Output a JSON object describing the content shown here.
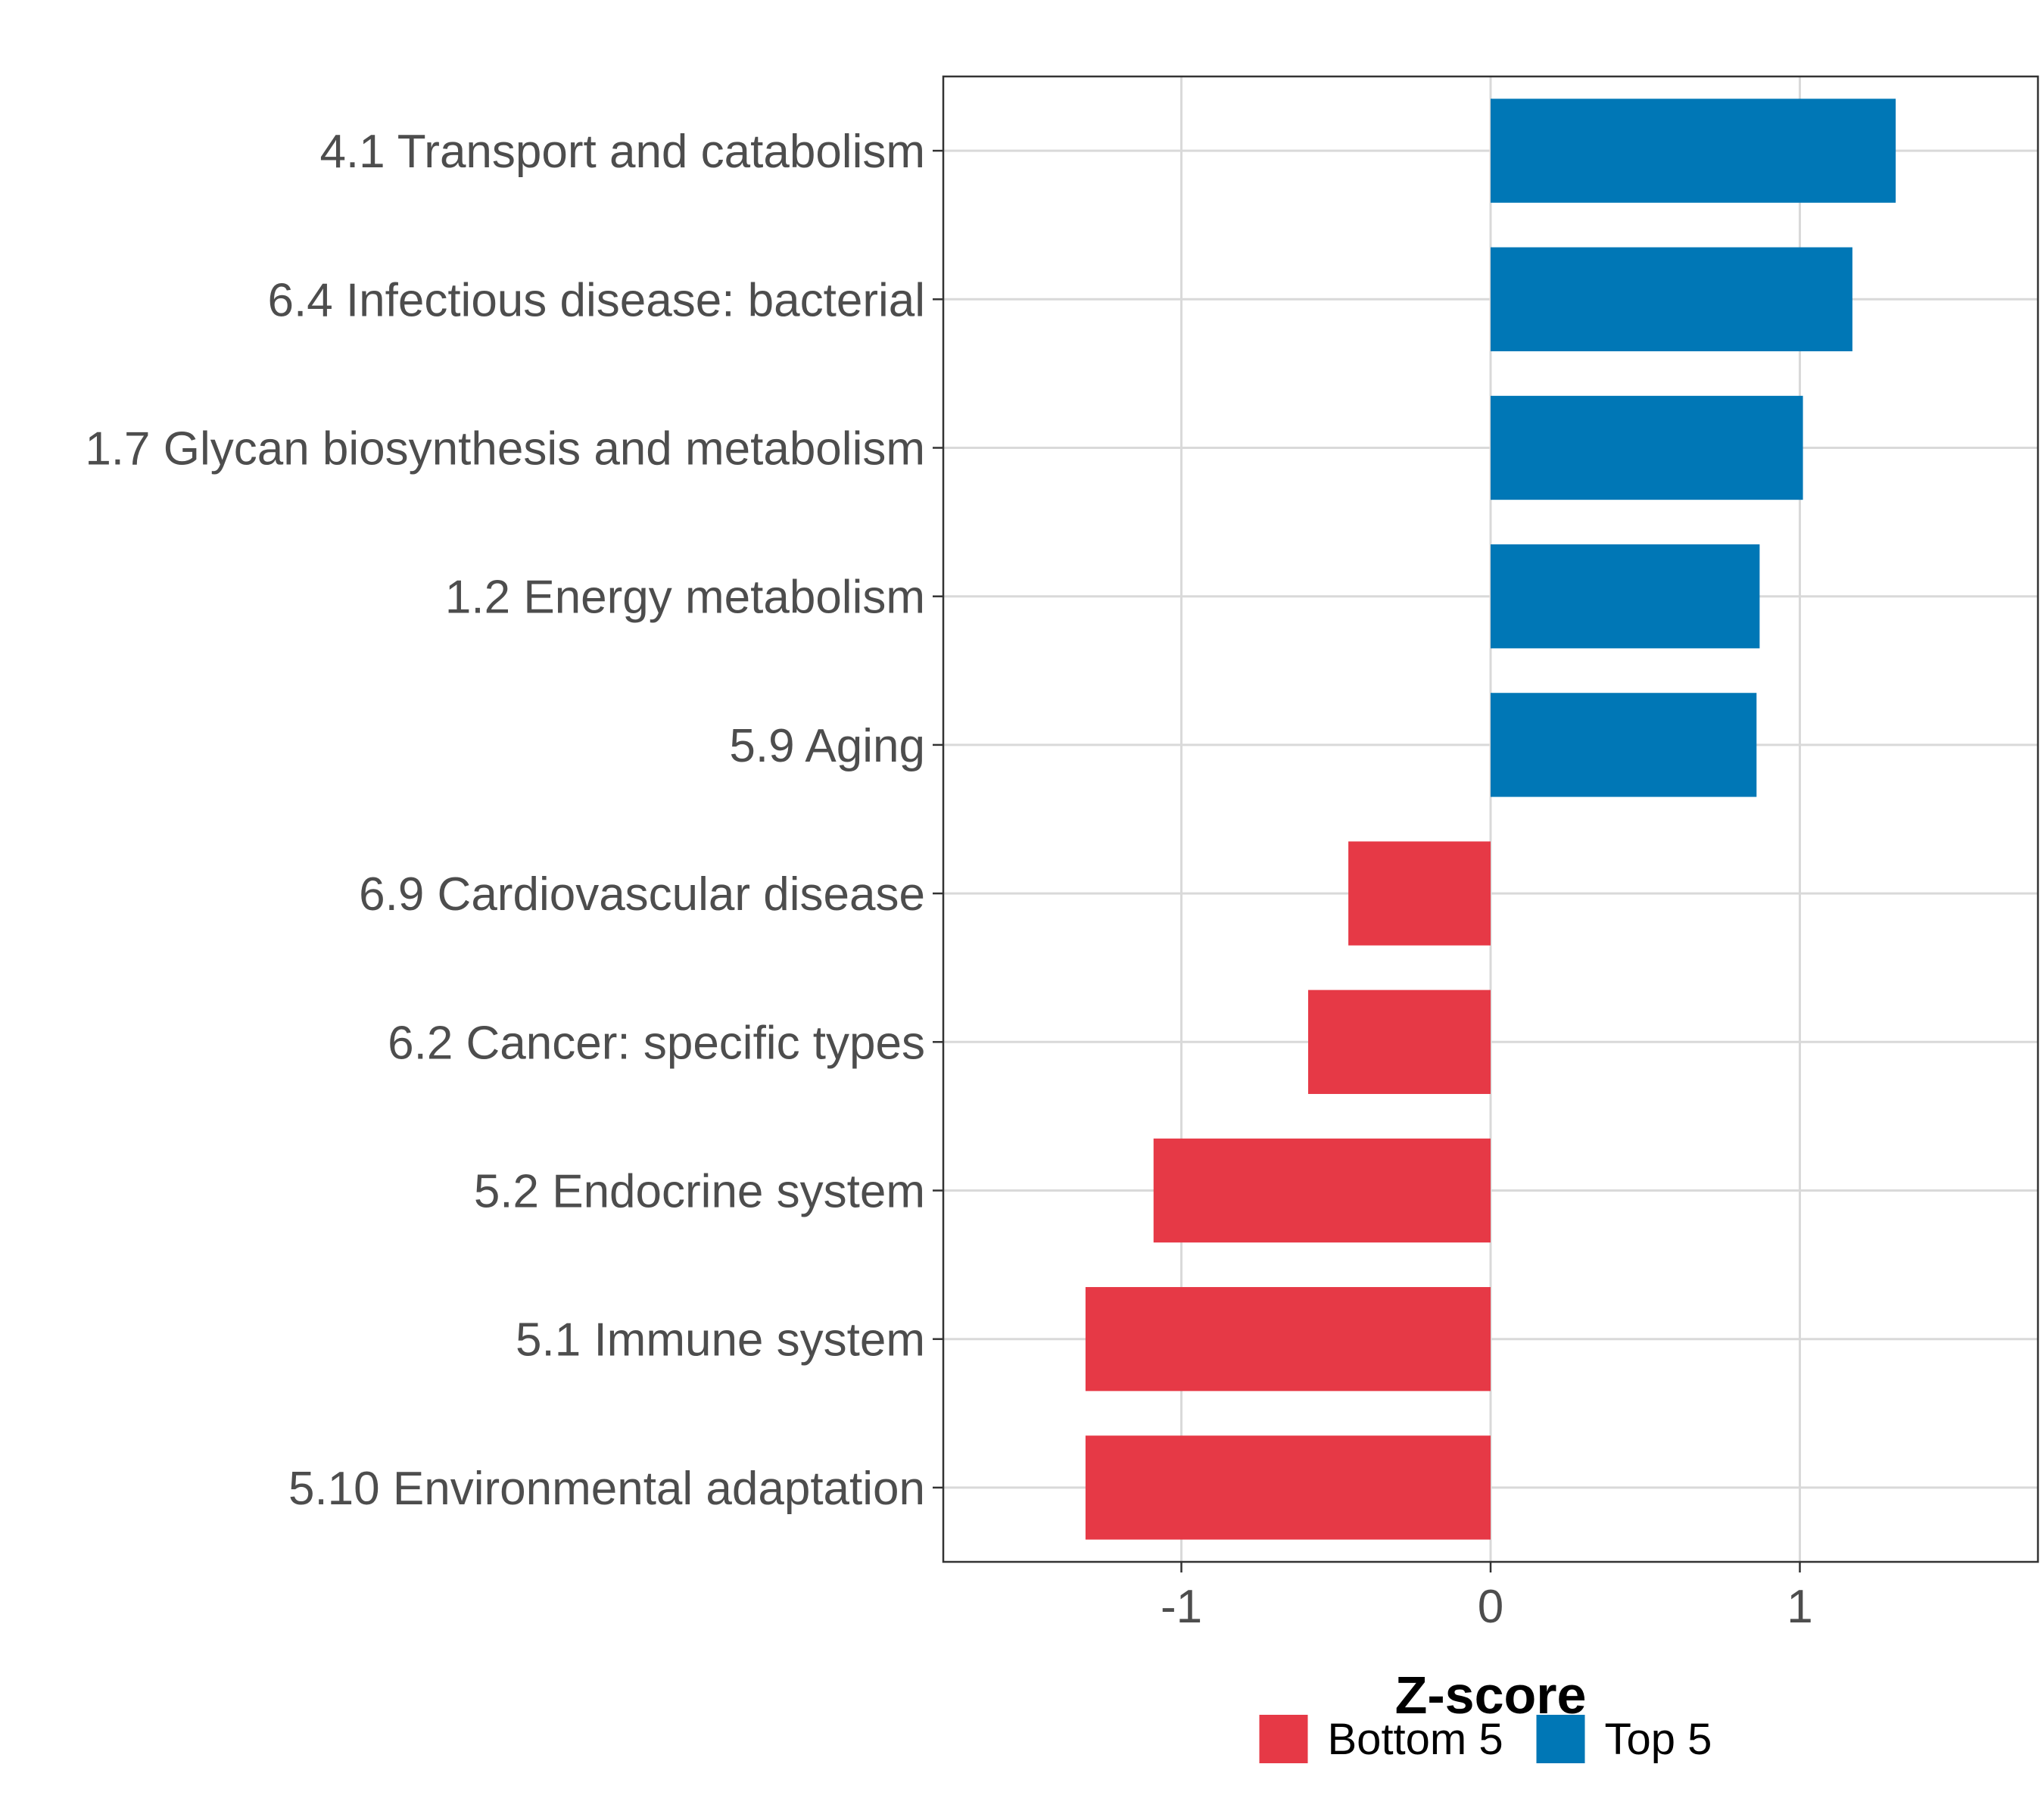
{
  "chart_data": {
    "type": "bar",
    "orientation": "horizontal",
    "categories": [
      "4.1 Transport and catabolism",
      "6.4 Infectious disease: bacterial",
      "1.7 Glycan biosynthesis and metabolism",
      "1.2 Energy metabolism",
      "5.9 Aging",
      "6.9 Cardiovascular disease",
      "6.2 Cancer: specific types",
      "5.2 Endocrine system",
      "5.1 Immune system",
      "5.10 Environmental adaptation"
    ],
    "values": [
      1.31,
      1.17,
      1.01,
      0.87,
      0.86,
      -0.46,
      -0.59,
      -1.09,
      -1.31,
      -1.31
    ],
    "groups": [
      "Top 5",
      "Top 5",
      "Top 5",
      "Top 5",
      "Top 5",
      "Bottom 5",
      "Bottom 5",
      "Bottom 5",
      "Bottom 5",
      "Bottom 5"
    ],
    "xlabel": "Z-score",
    "ylabel": "",
    "xlim": [
      -1.77,
      1.77
    ],
    "xticks": [
      -1,
      0,
      1
    ],
    "xtick_labels": [
      "-1",
      "0",
      "1"
    ],
    "grid": true,
    "legend": {
      "placement": "bottom",
      "entries": [
        {
          "label": "Bottom 5",
          "color": "#e63946"
        },
        {
          "label": "Top 5",
          "color": "#0077b6"
        }
      ]
    }
  }
}
